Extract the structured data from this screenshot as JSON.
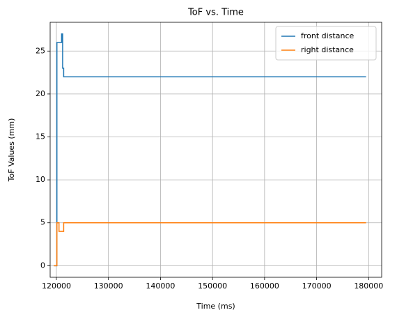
{
  "chart_data": {
    "type": "line",
    "title": "ToF vs. Time",
    "xlabel": "Time (ms)",
    "ylabel": "ToF Values (mm)",
    "x": [
      119500,
      120100,
      120100,
      120500,
      120500,
      121000,
      121000,
      121200,
      121200,
      121400,
      121400,
      179500
    ],
    "series": [
      {
        "name": "front distance",
        "color": "#1f77b4",
        "values": [
          0,
          0,
          26,
          26,
          26,
          26,
          27,
          27,
          23,
          23,
          22,
          22
        ]
      },
      {
        "name": "right distance",
        "color": "#ff7f0e",
        "values": [
          0,
          0,
          5,
          5,
          4,
          4,
          4,
          4,
          4,
          4,
          5,
          5
        ]
      }
    ],
    "xlim": [
      118800,
      182500
    ],
    "ylim": [
      -1.35,
      28.35
    ],
    "xticks": [
      120000,
      130000,
      140000,
      150000,
      160000,
      170000,
      180000
    ],
    "yticks": [
      0,
      5,
      10,
      15,
      20,
      25
    ],
    "grid": true,
    "legend": "upper right"
  }
}
